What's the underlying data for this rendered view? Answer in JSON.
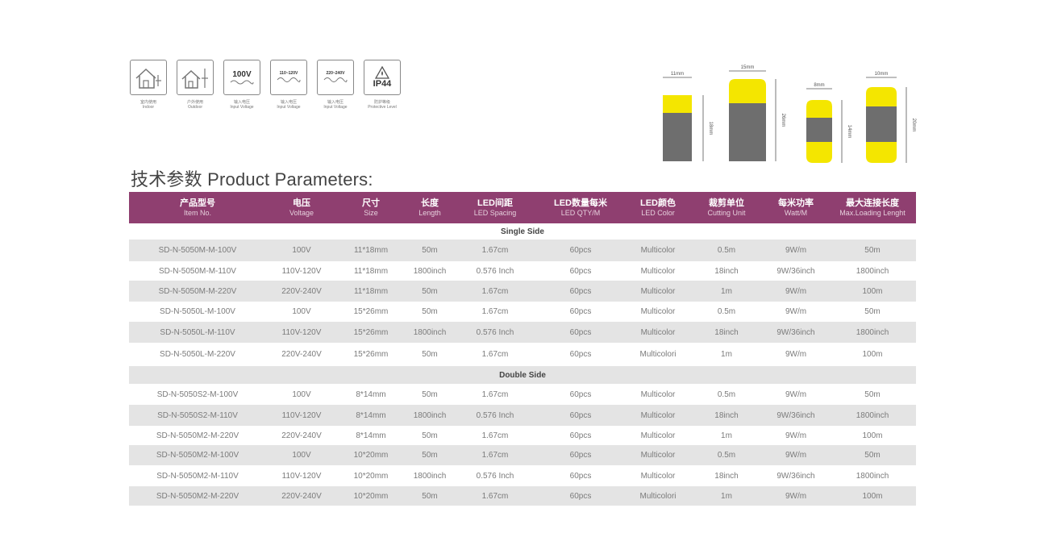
{
  "icons": [
    {
      "name": "indoor-icon",
      "glyph": "",
      "caption_cn": "室内使用",
      "caption_en": "Indoor"
    },
    {
      "name": "outdoor-icon",
      "glyph": "",
      "caption_cn": "户外使用",
      "caption_en": "Outdoor"
    },
    {
      "name": "voltage-100v-icon",
      "glyph": "100V",
      "caption_cn": "输入电压",
      "caption_en": "Input Voltage"
    },
    {
      "name": "voltage-110v-icon",
      "glyph": "110~120V",
      "caption_cn": "输入电压",
      "caption_en": "Input Voltage"
    },
    {
      "name": "voltage-220v-icon",
      "glyph": "220~240V",
      "caption_cn": "输入电压",
      "caption_en": "Input Voltage"
    },
    {
      "name": "ip44-icon",
      "glyph": "IP44",
      "caption_cn": "防护等级",
      "caption_en": "Protective Level"
    }
  ],
  "profiles": [
    {
      "width_label": "11mm",
      "height_label": "18mm"
    },
    {
      "width_label": "15mm",
      "height_label": "26mm"
    },
    {
      "width_label": "8mm",
      "height_label": "14mm"
    },
    {
      "width_label": "10mm",
      "height_label": "20mm"
    }
  ],
  "title": "技术参数 Product Parameters:",
  "columns": [
    {
      "cn": "产品型号",
      "en": "Item No."
    },
    {
      "cn": "电压",
      "en": "Voltage"
    },
    {
      "cn": "尺寸",
      "en": "Size"
    },
    {
      "cn": "长度",
      "en": "Length"
    },
    {
      "cn": "LED间距",
      "en": "LED Spacing"
    },
    {
      "cn": "LED数量每米",
      "en": "LED QTY/M"
    },
    {
      "cn": "LED颜色",
      "en": "LED Color"
    },
    {
      "cn": "裁剪单位",
      "en": "Cutting Unit"
    },
    {
      "cn": "每米功率",
      "en": "Watt/M"
    },
    {
      "cn": "最大连接长度",
      "en": "Max.Loading Lenght"
    }
  ],
  "sections": [
    {
      "label": "Single Side",
      "rows": [
        [
          "SD-N-5050M-M-100V",
          "100V",
          "11*18mm",
          "50m",
          "1.67cm",
          "60pcs",
          "Multicolor",
          "0.5m",
          "9W/m",
          "50m"
        ],
        [
          "SD-N-5050M-M-110V",
          "110V-120V",
          "11*18mm",
          "1800inch",
          "0.576 Inch",
          "60pcs",
          "Multicolor",
          "18inch",
          "9W/36inch",
          "1800inch"
        ],
        [
          "SD-N-5050M-M-220V",
          "220V-240V",
          "11*18mm",
          "50m",
          "1.67cm",
          "60pcs",
          "Multicolor",
          "1m",
          "9W/m",
          "100m"
        ],
        [
          "SD-N-5050L-M-100V",
          "100V",
          "15*26mm",
          "50m",
          "1.67cm",
          "60pcs",
          "Multicolor",
          "0.5m",
          "9W/m",
          "50m"
        ],
        [
          "SD-N-5050L-M-110V",
          "110V-120V",
          "15*26mm",
          "1800inch",
          "0.576 Inch",
          "60pcs",
          "Multicolor",
          "18inch",
          "9W/36inch",
          "1800inch"
        ],
        [
          "SD-N-5050L-M-220V",
          "220V-240V",
          "15*26mm",
          "50m",
          "1.67cm",
          "60pcs",
          "Multicolori",
          "1m",
          "9W/m",
          "100m"
        ]
      ]
    },
    {
      "label": "Double Side",
      "rows": [
        [
          "SD-N-5050S2-M-100V",
          "100V",
          "8*14mm",
          "50m",
          "1.67cm",
          "60pcs",
          "Multicolor",
          "0.5m",
          "9W/m",
          "50m"
        ],
        [
          "SD-N-5050S2-M-110V",
          "110V-120V",
          "8*14mm",
          "1800inch",
          "0.576 Inch",
          "60pcs",
          "Multicolor",
          "18inch",
          "9W/36inch",
          "1800inch"
        ],
        [
          "SD-N-5050M2-M-220V",
          "220V-240V",
          "8*14mm",
          "50m",
          "1.67cm",
          "60pcs",
          "Multicolor",
          "1m",
          "9W/m",
          "100m"
        ],
        [
          "SD-N-5050M2-M-100V",
          "100V",
          "10*20mm",
          "50m",
          "1.67cm",
          "60pcs",
          "Multicolor",
          "0.5m",
          "9W/m",
          "50m"
        ],
        [
          "SD-N-5050M2-M-110V",
          "110V-120V",
          "10*20mm",
          "1800inch",
          "0.576 Inch",
          "60pcs",
          "Multicolor",
          "18inch",
          "9W/36inch",
          "1800inch"
        ],
        [
          "SD-N-5050M2-M-220V",
          "220V-240V",
          "10*20mm",
          "50m",
          "1.67cm",
          "60pcs",
          "Multicolori",
          "1m",
          "9W/m",
          "100m"
        ]
      ]
    }
  ],
  "colors": {
    "header_bg": "#8f3f70",
    "stripe": "#e4e4e4",
    "profile_yellow": "#f4e600",
    "profile_gray": "#6e6e6e"
  }
}
